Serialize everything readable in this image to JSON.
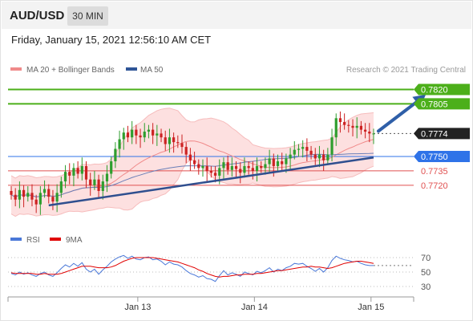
{
  "header": {
    "symbol": "AUD/USD",
    "timeframe": "30 MIN"
  },
  "datetime": "Friday, January 15, 2021 12:56:10 AM CET",
  "research_credit": "Research © 2021 Trading Central",
  "legend_top": [
    {
      "name": "MA 20 + Bollinger Bands",
      "color": "#f08a8a"
    },
    {
      "name": "MA 50",
      "color": "#2f5597"
    }
  ],
  "legend_bottom": [
    {
      "name": "RSI",
      "color": "#4a78d8"
    },
    {
      "name": "9MA",
      "color": "#e00000"
    }
  ],
  "colors": {
    "green_level": "#4caf1a",
    "blue_level": "#2f73e8",
    "red_level": "#e05050",
    "dark_label": "#222222",
    "up_candle": "#2e9e2e",
    "down_candle": "#cc2222",
    "bollinger_fill": "#fde0e0",
    "trendline": "#2f4f8f",
    "arrow": "#2f5fa8"
  },
  "chart_data": [
    {
      "type": "line",
      "title": "",
      "xlabel": "",
      "ylabel": "",
      "ylim": [
        0.7688,
        0.7833
      ],
      "x_ticks": [
        "Jan 13",
        "Jan 14",
        "Jan 15"
      ],
      "x_tick_bar_index": [
        30,
        58,
        86
      ],
      "bar_count": 88,
      "levels": [
        {
          "value": "0.7820",
          "kind": "resistance",
          "color": "#4caf1a"
        },
        {
          "value": "0.7805",
          "kind": "resistance",
          "color": "#4caf1a"
        },
        {
          "value": "0.7774",
          "kind": "last_price",
          "color": "#222222"
        },
        {
          "value": "0.7750",
          "kind": "pivot",
          "color": "#2f73e8"
        },
        {
          "value": "0.7735",
          "kind": "support",
          "color": "#e05050"
        },
        {
          "value": "0.7720",
          "kind": "support",
          "color": "#e05050"
        }
      ],
      "trendline": {
        "from": [
          9,
          0.7699
        ],
        "to": [
          88,
          0.7749
        ]
      },
      "target_arrow": {
        "from": [
          88,
          0.7774
        ],
        "to": [
          98,
          0.7818
        ]
      },
      "series": [
        {
          "name": "AUD/USD",
          "close": [
            0.771,
            0.7705,
            0.7715,
            0.7708,
            0.7712,
            0.7705,
            0.77,
            0.7712,
            0.7716,
            0.7708,
            0.7703,
            0.7712,
            0.7724,
            0.7734,
            0.773,
            0.7738,
            0.7732,
            0.774,
            0.7726,
            0.772,
            0.7726,
            0.7714,
            0.7724,
            0.7732,
            0.7745,
            0.7758,
            0.7768,
            0.7775,
            0.777,
            0.7778,
            0.7772,
            0.777,
            0.7776,
            0.7778,
            0.7772,
            0.7774,
            0.777,
            0.7763,
            0.777,
            0.7765,
            0.7764,
            0.776,
            0.7752,
            0.7746,
            0.7742,
            0.7738,
            0.774,
            0.7735,
            0.7733,
            0.773,
            0.7738,
            0.7744,
            0.7736,
            0.774,
            0.7737,
            0.7733,
            0.774,
            0.7738,
            0.7735,
            0.774,
            0.7738,
            0.7742,
            0.7748,
            0.774,
            0.7745,
            0.7742,
            0.7748,
            0.7752,
            0.7757,
            0.7758,
            0.776,
            0.7756,
            0.7752,
            0.7748,
            0.7752,
            0.7746,
            0.7752,
            0.777,
            0.779,
            0.7786,
            0.7783,
            0.7782,
            0.778,
            0.7782,
            0.7778,
            0.7776,
            0.7774,
            0.7774
          ]
        }
      ]
    },
    {
      "type": "line",
      "title": "",
      "xlabel": "",
      "ylabel": "",
      "ylim": [
        20,
        80
      ],
      "y_ticks": [
        30,
        50,
        70
      ],
      "series": [
        {
          "name": "RSI",
          "values": [
            48,
            46,
            50,
            47,
            49,
            46,
            44,
            48,
            50,
            46,
            44,
            49,
            55,
            60,
            57,
            62,
            58,
            63,
            54,
            50,
            54,
            47,
            53,
            58,
            64,
            68,
            71,
            73,
            69,
            72,
            68,
            67,
            70,
            71,
            67,
            68,
            65,
            60,
            64,
            61,
            60,
            57,
            52,
            48,
            46,
            43,
            45,
            41,
            40,
            37,
            45,
            52,
            46,
            49,
            47,
            44,
            50,
            48,
            46,
            51,
            49,
            52,
            56,
            50,
            54,
            52,
            56,
            58,
            62,
            61,
            62,
            58,
            55,
            51,
            55,
            50,
            56,
            66,
            72,
            69,
            67,
            66,
            64,
            65,
            62,
            60,
            59,
            59
          ]
        },
        {
          "name": "9MA",
          "values": [
            49,
            48,
            48,
            48,
            48,
            48,
            47,
            47,
            48,
            47,
            47,
            47,
            48,
            50,
            52,
            54,
            56,
            58,
            58,
            58,
            57,
            56,
            56,
            56,
            57,
            59,
            62,
            65,
            67,
            69,
            70,
            70,
            70,
            70,
            70,
            69,
            68,
            67,
            66,
            65,
            64,
            62,
            60,
            58,
            56,
            53,
            51,
            48,
            46,
            44,
            43,
            44,
            44,
            45,
            46,
            46,
            47,
            47,
            47,
            48,
            48,
            49,
            50,
            51,
            52,
            52,
            53,
            54,
            55,
            56,
            57,
            57,
            58,
            57,
            57,
            56,
            55,
            56,
            58,
            60,
            62,
            63,
            64,
            65,
            65,
            64,
            63,
            62
          ]
        }
      ]
    }
  ]
}
